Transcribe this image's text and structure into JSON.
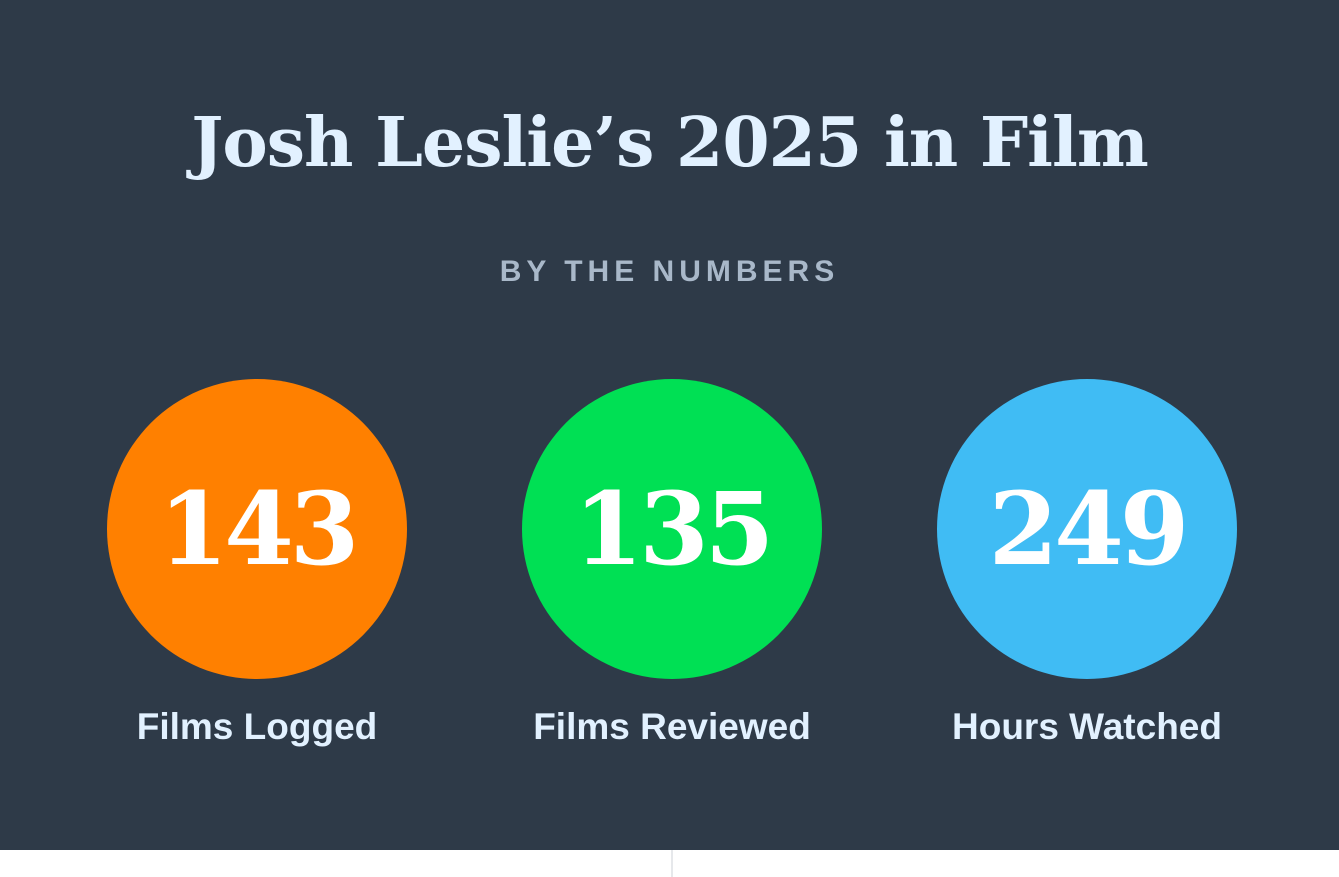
{
  "header": {
    "title": "Josh Leslie’s 2025 in Film",
    "subtitle": "BY THE NUMBERS"
  },
  "stats": [
    {
      "value": "143",
      "label": "Films Logged",
      "color": "#ff8000"
    },
    {
      "value": "135",
      "label": "Films Reviewed",
      "color": "#00e054"
    },
    {
      "value": "249",
      "label": "Hours Watched",
      "color": "#40bcf4"
    }
  ]
}
